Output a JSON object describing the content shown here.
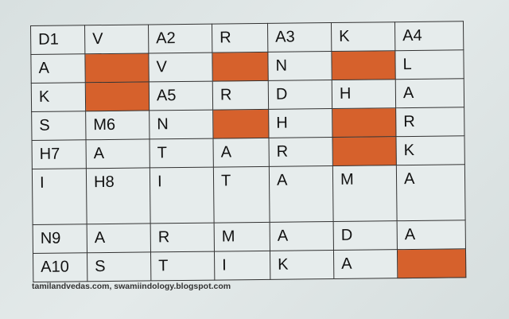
{
  "colors": {
    "blocked": "#d6612c",
    "cell": "#e6ecec",
    "border": "#333333"
  },
  "grid": [
    [
      "D1",
      "V",
      "A2",
      "R",
      "A3",
      "K",
      "A4"
    ],
    [
      "A",
      null,
      "V",
      null,
      "N",
      null,
      "L"
    ],
    [
      "K",
      null,
      "A5",
      "R",
      "D",
      "H",
      "A"
    ],
    [
      "S",
      "M6",
      "N",
      null,
      "H",
      null,
      "R"
    ],
    [
      "H7",
      "A",
      "T",
      "A",
      "R",
      null,
      "K"
    ],
    [
      "I",
      "H8",
      "I",
      "T",
      "A",
      "M",
      "A"
    ],
    [
      "N9",
      "A",
      "R",
      "M",
      "A",
      "D",
      "A"
    ],
    [
      "A10",
      "S",
      "T",
      "I",
      "K",
      "A",
      null
    ]
  ],
  "credit": "tamilandvedas.com, swamiindology.blogspot.com"
}
